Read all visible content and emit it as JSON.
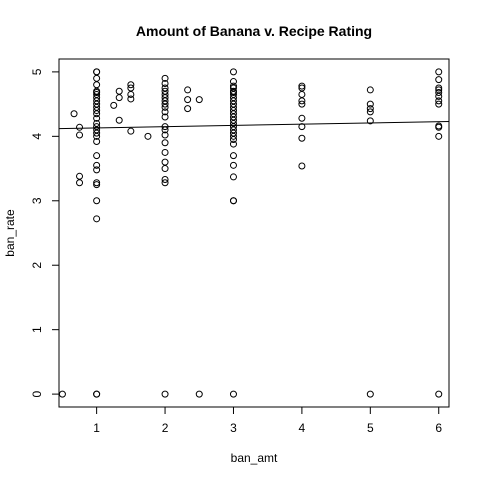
{
  "chart_data": {
    "type": "scatter",
    "title": "Amount of Banana v. Recipe Rating",
    "xlabel": "ban_amt",
    "ylabel": "ban_rate",
    "xlim": [
      0.45,
      6.15
    ],
    "ylim": [
      -0.2,
      5.2
    ],
    "xticks": [
      1,
      2,
      3,
      4,
      5,
      6
    ],
    "yticks": [
      0,
      1,
      2,
      3,
      4,
      5
    ],
    "grid": false,
    "legend": "none",
    "points": [
      [
        0.5,
        0
      ],
      [
        0.67,
        4.35
      ],
      [
        0.75,
        4.14
      ],
      [
        0.75,
        4.02
      ],
      [
        0.75,
        3.38
      ],
      [
        0.75,
        3.28
      ],
      [
        1,
        5
      ],
      [
        1,
        5
      ],
      [
        1,
        4.9
      ],
      [
        1,
        4.8
      ],
      [
        1,
        4.7
      ],
      [
        1,
        4.68
      ],
      [
        1,
        4.65
      ],
      [
        1,
        4.6
      ],
      [
        1,
        4.55
      ],
      [
        1,
        4.5
      ],
      [
        1,
        4.45
      ],
      [
        1,
        4.4
      ],
      [
        1,
        4.35
      ],
      [
        1,
        4.28
      ],
      [
        1,
        4.2
      ],
      [
        1,
        4.15
      ],
      [
        1,
        4.1
      ],
      [
        1,
        4.05
      ],
      [
        1,
        4.0
      ],
      [
        1,
        3.92
      ],
      [
        1,
        3.7
      ],
      [
        1,
        3.55
      ],
      [
        1,
        3.48
      ],
      [
        1,
        3.28
      ],
      [
        1,
        3.25
      ],
      [
        1,
        3.0
      ],
      [
        1,
        2.72
      ],
      [
        1,
        0
      ],
      [
        1,
        0
      ],
      [
        1.25,
        4.48
      ],
      [
        1.33,
        4.7
      ],
      [
        1.33,
        4.6
      ],
      [
        1.33,
        4.25
      ],
      [
        1.5,
        4.8
      ],
      [
        1.5,
        4.75
      ],
      [
        1.5,
        4.65
      ],
      [
        1.5,
        4.58
      ],
      [
        1.5,
        4.08
      ],
      [
        1.75,
        4.0
      ],
      [
        2,
        4.9
      ],
      [
        2,
        4.82
      ],
      [
        2,
        4.75
      ],
      [
        2,
        4.7
      ],
      [
        2,
        4.65
      ],
      [
        2,
        4.6
      ],
      [
        2,
        4.55
      ],
      [
        2,
        4.5
      ],
      [
        2,
        4.45
      ],
      [
        2,
        4.38
      ],
      [
        2,
        4.3
      ],
      [
        2,
        4.15
      ],
      [
        2,
        4.1
      ],
      [
        2,
        4.02
      ],
      [
        2,
        3.9
      ],
      [
        2,
        3.75
      ],
      [
        2,
        3.6
      ],
      [
        2,
        3.5
      ],
      [
        2,
        3.33
      ],
      [
        2,
        3.28
      ],
      [
        2,
        0
      ],
      [
        2.33,
        4.72
      ],
      [
        2.33,
        4.57
      ],
      [
        2.33,
        4.43
      ],
      [
        2.5,
        4.57
      ],
      [
        2.5,
        0
      ],
      [
        3,
        5
      ],
      [
        3,
        4.85
      ],
      [
        3,
        4.78
      ],
      [
        3,
        4.75
      ],
      [
        3,
        4.7
      ],
      [
        3,
        4.68
      ],
      [
        3,
        4.65
      ],
      [
        3,
        4.6
      ],
      [
        3,
        4.55
      ],
      [
        3,
        4.5
      ],
      [
        3,
        4.45
      ],
      [
        3,
        4.4
      ],
      [
        3,
        4.35
      ],
      [
        3,
        4.3
      ],
      [
        3,
        4.25
      ],
      [
        3,
        4.2
      ],
      [
        3,
        4.15
      ],
      [
        3,
        4.1
      ],
      [
        3,
        4.05
      ],
      [
        3,
        4.0
      ],
      [
        3,
        3.95
      ],
      [
        3,
        3.88
      ],
      [
        3,
        3.7
      ],
      [
        3,
        3.55
      ],
      [
        3,
        3.37
      ],
      [
        3,
        3.0
      ],
      [
        3,
        3.0
      ],
      [
        3,
        0
      ],
      [
        4,
        4.78
      ],
      [
        4,
        4.75
      ],
      [
        4,
        4.65
      ],
      [
        4,
        4.55
      ],
      [
        4,
        4.5
      ],
      [
        4,
        4.28
      ],
      [
        4,
        4.15
      ],
      [
        4,
        3.97
      ],
      [
        4,
        3.54
      ],
      [
        5,
        4.72
      ],
      [
        5,
        4.5
      ],
      [
        5,
        4.43
      ],
      [
        5,
        4.38
      ],
      [
        5,
        4.24
      ],
      [
        5,
        0
      ],
      [
        6,
        5
      ],
      [
        6,
        4.88
      ],
      [
        6,
        4.75
      ],
      [
        6,
        4.72
      ],
      [
        6,
        4.68
      ],
      [
        6,
        4.62
      ],
      [
        6,
        4.55
      ],
      [
        6,
        4.5
      ],
      [
        6,
        4.16
      ],
      [
        6,
        4.14
      ],
      [
        6,
        4.0
      ],
      [
        6,
        0
      ]
    ],
    "fit_line": {
      "x": [
        0.45,
        6.15
      ],
      "y": [
        4.12,
        4.23
      ]
    }
  }
}
